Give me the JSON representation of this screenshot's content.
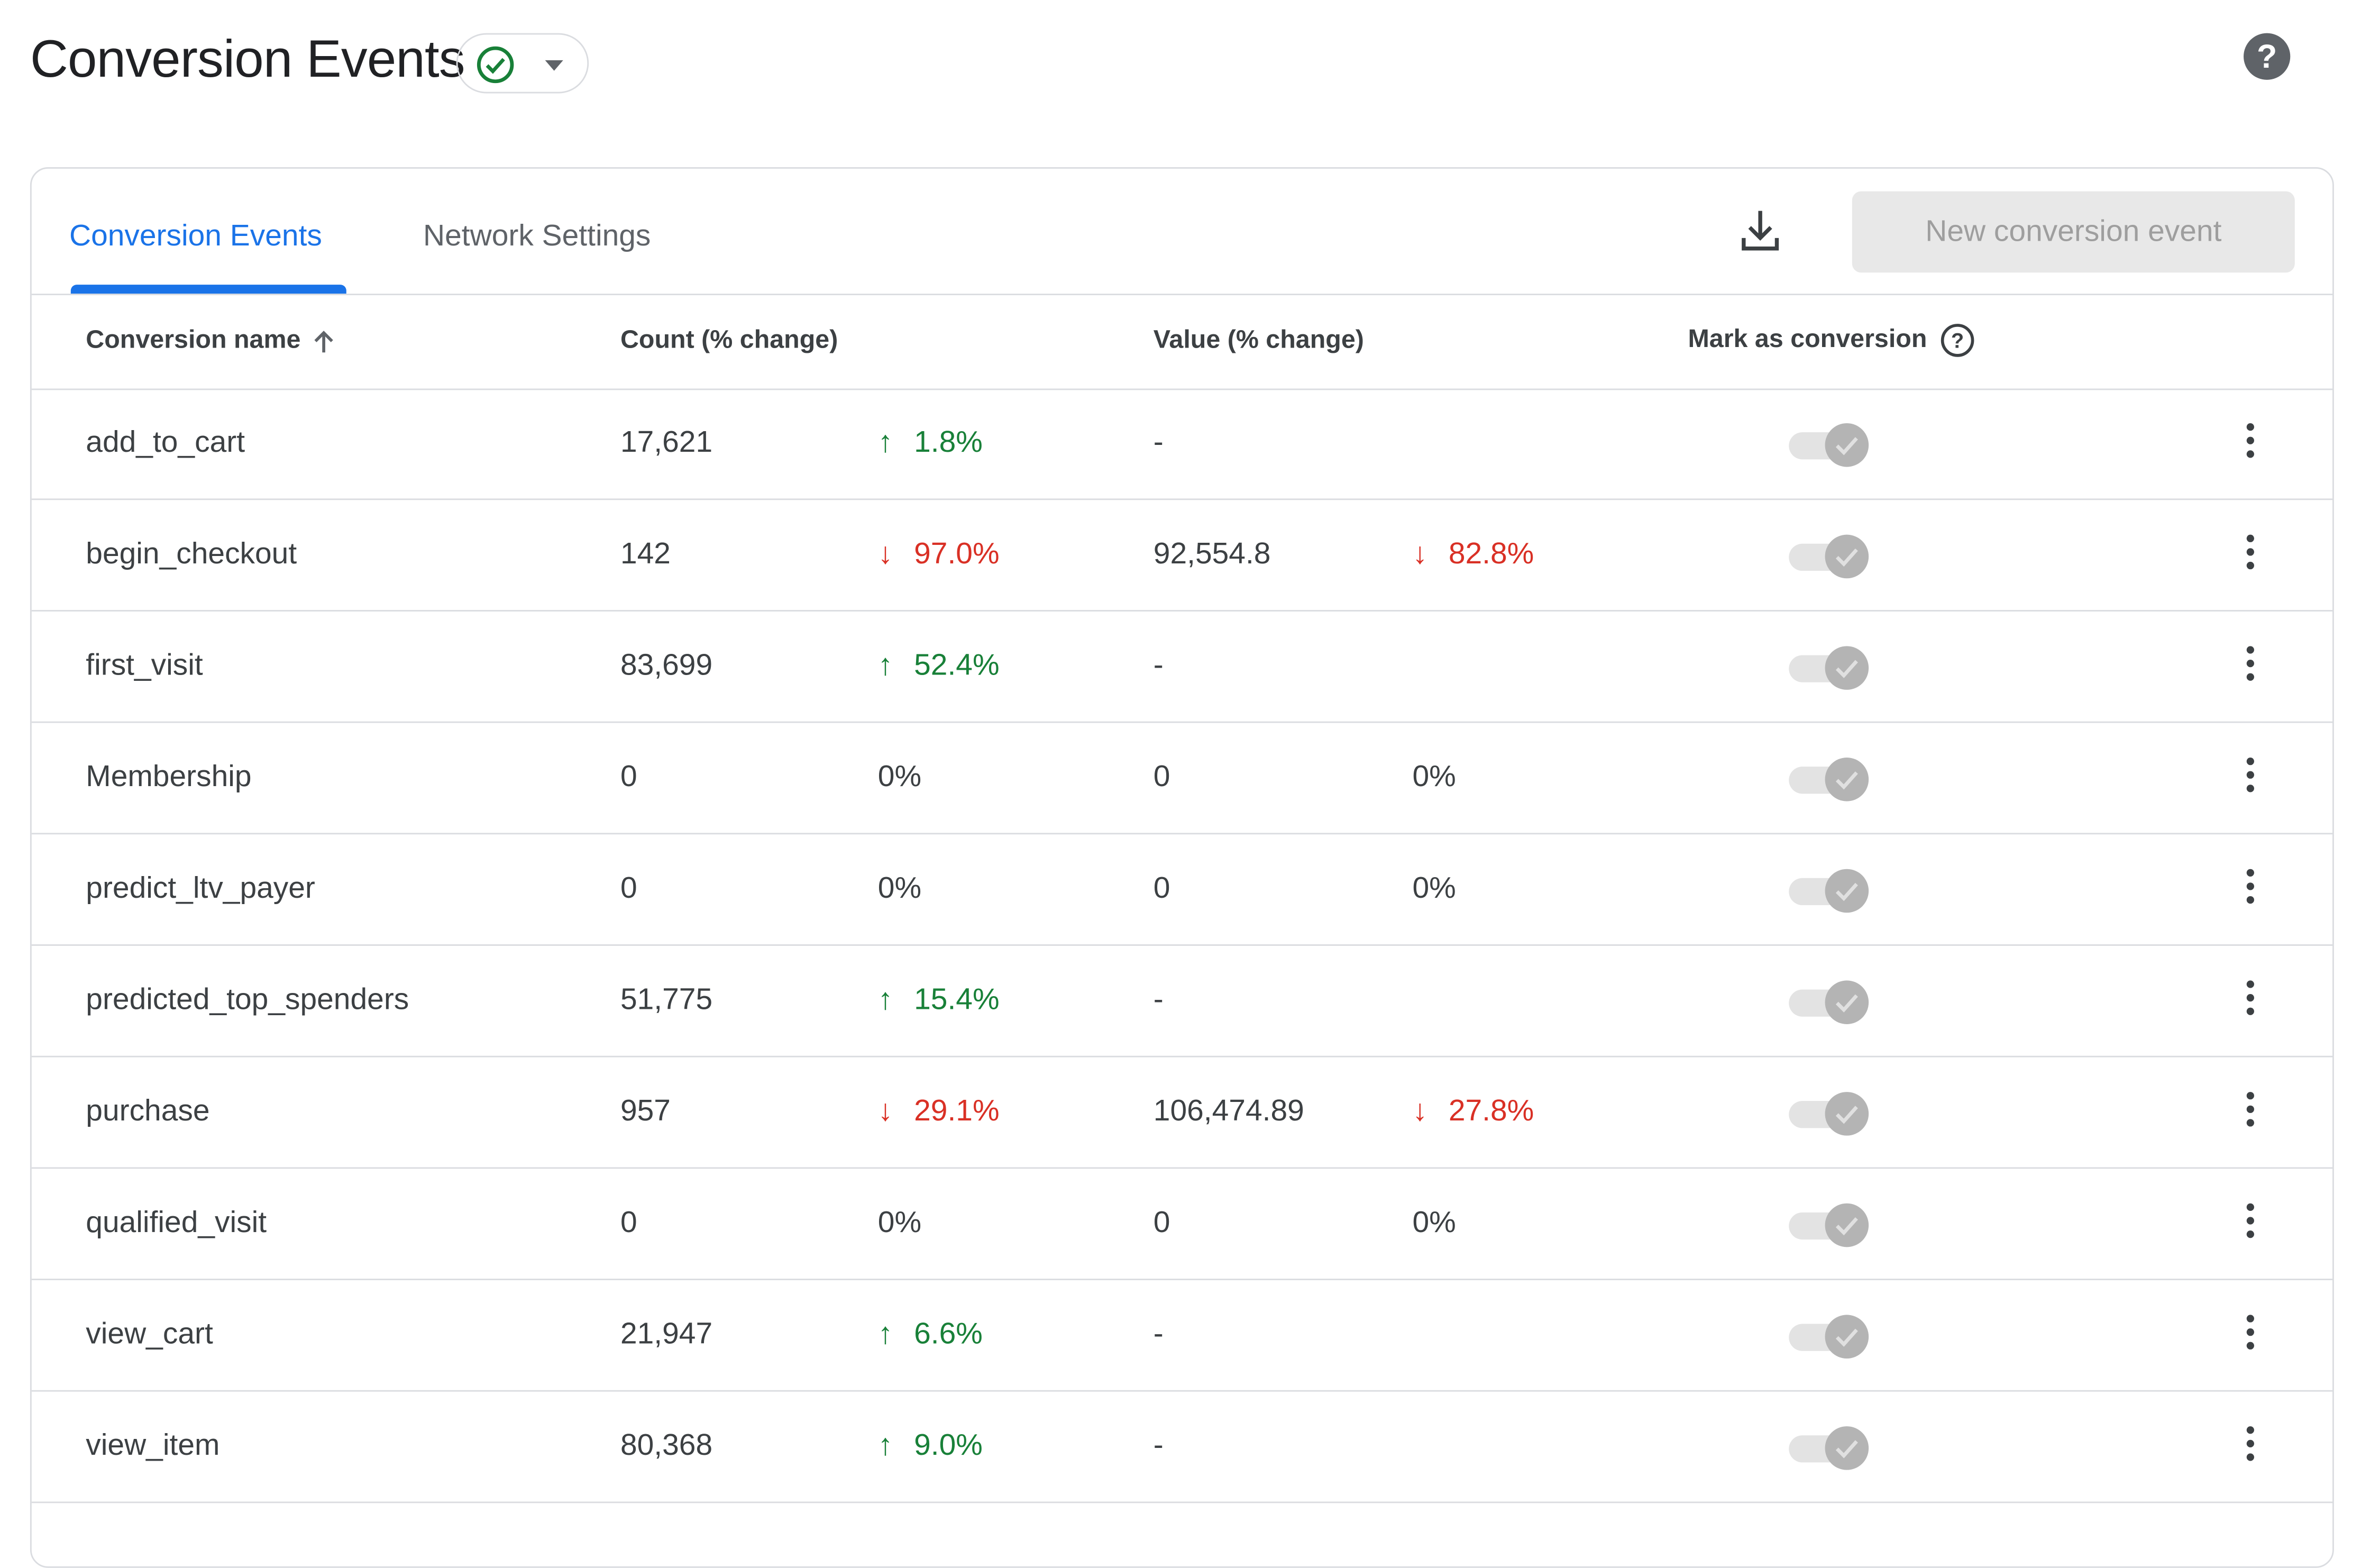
{
  "page": {
    "title": "Conversion Events",
    "help_label": "?"
  },
  "tabs": [
    {
      "label": "Conversion Events"
    },
    {
      "label": "Network Settings"
    }
  ],
  "toolbar": {
    "new_button": "New conversion event"
  },
  "columns": {
    "name": "Conversion name",
    "count": "Count (% change)",
    "value": "Value (% change)",
    "mark": "Mark as conversion"
  },
  "colors": {
    "up": "#188038",
    "down": "#d93025",
    "accent": "#1a73e8"
  },
  "rows": [
    {
      "name": "add_to_cart",
      "count": "17,621",
      "count_change": "1.8%",
      "count_dir": "up",
      "value": "-",
      "value_change": "",
      "value_dir": "",
      "marked": true
    },
    {
      "name": "begin_checkout",
      "count": "142",
      "count_change": "97.0%",
      "count_dir": "down",
      "value": "92,554.8",
      "value_change": "82.8%",
      "value_dir": "down",
      "marked": true
    },
    {
      "name": "first_visit",
      "count": "83,699",
      "count_change": "52.4%",
      "count_dir": "up",
      "value": "-",
      "value_change": "",
      "value_dir": "",
      "marked": true
    },
    {
      "name": "Membership",
      "count": "0",
      "count_change": "0%",
      "count_dir": "",
      "value": "0",
      "value_change": "0%",
      "value_dir": "",
      "marked": true
    },
    {
      "name": "predict_ltv_payer",
      "count": "0",
      "count_change": "0%",
      "count_dir": "",
      "value": "0",
      "value_change": "0%",
      "value_dir": "",
      "marked": true
    },
    {
      "name": "predicted_top_spenders",
      "count": "51,775",
      "count_change": "15.4%",
      "count_dir": "up",
      "value": "-",
      "value_change": "",
      "value_dir": "",
      "marked": true
    },
    {
      "name": "purchase",
      "count": "957",
      "count_change": "29.1%",
      "count_dir": "down",
      "value": "106,474.89",
      "value_change": "27.8%",
      "value_dir": "down",
      "marked": true
    },
    {
      "name": "qualified_visit",
      "count": "0",
      "count_change": "0%",
      "count_dir": "",
      "value": "0",
      "value_change": "0%",
      "value_dir": "",
      "marked": true
    },
    {
      "name": "view_cart",
      "count": "21,947",
      "count_change": "6.6%",
      "count_dir": "up",
      "value": "-",
      "value_change": "",
      "value_dir": "",
      "marked": true
    },
    {
      "name": "view_item",
      "count": "80,368",
      "count_change": "9.0%",
      "count_dir": "up",
      "value": "-",
      "value_change": "",
      "value_dir": "",
      "marked": true
    }
  ]
}
